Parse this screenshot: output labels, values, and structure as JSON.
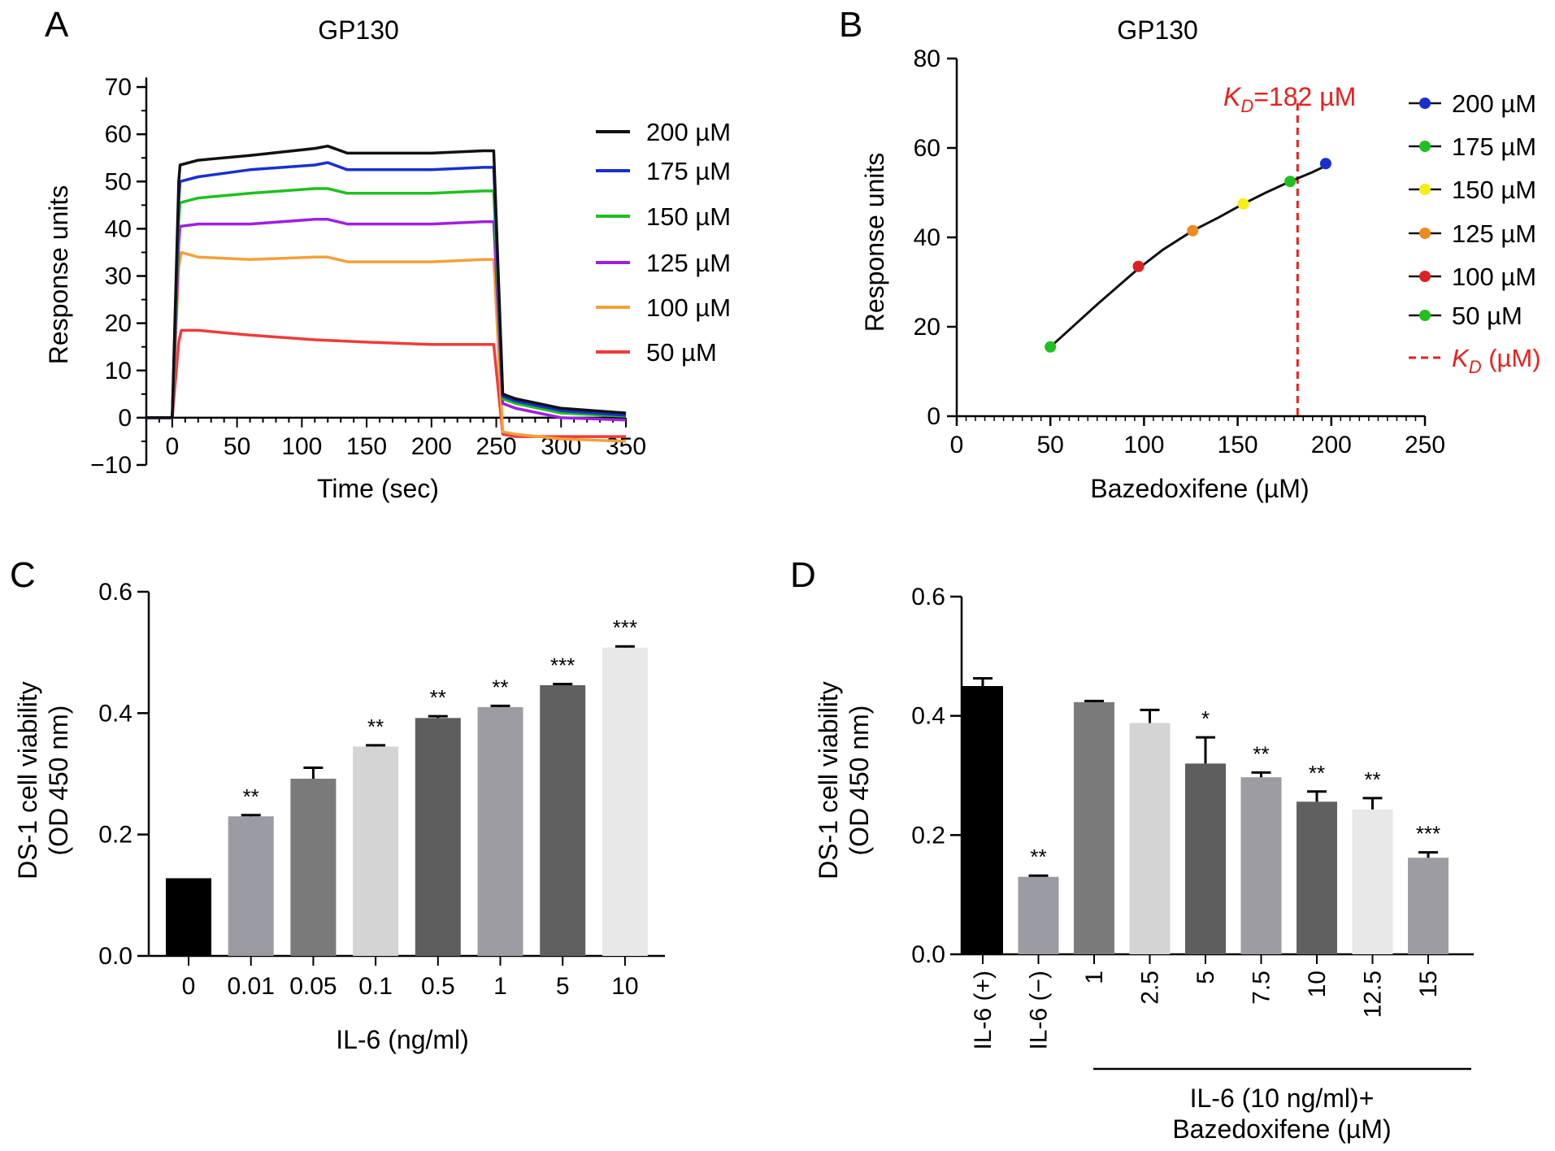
{
  "colors": {
    "black": "#111111",
    "blue": "#1a2fd0",
    "green": "#1fc01f",
    "purple": "#a01fe0",
    "orange": "#f5a03a",
    "red": "#ef3b3b",
    "yellow": "#f4ee12",
    "dot_orange": "#f08a1c",
    "dot_red": "#e02020",
    "kd_red": "#e8201c"
  },
  "chart_data": [
    {
      "panel": "A",
      "type": "line",
      "title": "GP130",
      "xlabel": "Time (sec)",
      "ylabel": "Response units",
      "xlim": [
        -20,
        350
      ],
      "ylim": [
        -10,
        75
      ],
      "xticks": [
        0,
        50,
        100,
        150,
        200,
        250,
        300,
        350
      ],
      "xtick_labels": [
        "0",
        "50",
        "100",
        "150",
        "200",
        "250",
        "300",
        "350"
      ],
      "yticks": [
        -10,
        0,
        10,
        20,
        30,
        40,
        50,
        60,
        70
      ],
      "ytick_labels": [
        "−10",
        "0",
        "10",
        "20",
        "30",
        "40",
        "50",
        "60",
        "70"
      ],
      "legend": "top-right",
      "series": [
        {
          "name": "200 µM",
          "color": "#111111",
          "points": [
            [
              -20,
              0
            ],
            [
              0,
              0
            ],
            [
              5,
              50
            ],
            [
              6,
              53.5
            ],
            [
              20,
              54.5
            ],
            [
              60,
              55.5
            ],
            [
              110,
              57
            ],
            [
              120,
              57.5
            ],
            [
              135,
              56
            ],
            [
              200,
              56
            ],
            [
              240,
              56.5
            ],
            [
              248,
              56.5
            ],
            [
              255,
              5
            ],
            [
              265,
              4
            ],
            [
              300,
              2
            ],
            [
              350,
              1
            ]
          ]
        },
        {
          "name": "175 µM",
          "color": "#1a2fd0",
          "points": [
            [
              -20,
              0
            ],
            [
              0,
              0
            ],
            [
              5,
              46
            ],
            [
              6,
              50
            ],
            [
              20,
              51
            ],
            [
              60,
              52.5
            ],
            [
              110,
              53.5
            ],
            [
              120,
              54
            ],
            [
              135,
              52.5
            ],
            [
              200,
              52.5
            ],
            [
              240,
              53
            ],
            [
              248,
              53
            ],
            [
              255,
              4.5
            ],
            [
              265,
              3.5
            ],
            [
              300,
              1.5
            ],
            [
              350,
              0.5
            ]
          ]
        },
        {
          "name": "150 µM",
          "color": "#1fc01f",
          "points": [
            [
              -20,
              0
            ],
            [
              0,
              0
            ],
            [
              5,
              42
            ],
            [
              6,
              45.5
            ],
            [
              20,
              46.5
            ],
            [
              60,
              47.5
            ],
            [
              110,
              48.5
            ],
            [
              120,
              48.5
            ],
            [
              135,
              47.5
            ],
            [
              200,
              47.5
            ],
            [
              240,
              48
            ],
            [
              248,
              48
            ],
            [
              255,
              4
            ],
            [
              265,
              3
            ],
            [
              300,
              1
            ],
            [
              350,
              0.3
            ]
          ]
        },
        {
          "name": "125 µM",
          "color": "#a01fe0",
          "points": [
            [
              -20,
              0
            ],
            [
              0,
              0
            ],
            [
              5,
              37
            ],
            [
              6,
              40.5
            ],
            [
              20,
              41
            ],
            [
              60,
              41
            ],
            [
              110,
              42
            ],
            [
              120,
              42
            ],
            [
              135,
              41
            ],
            [
              200,
              41
            ],
            [
              240,
              41.5
            ],
            [
              248,
              41.5
            ],
            [
              255,
              3
            ],
            [
              265,
              2
            ],
            [
              300,
              0
            ],
            [
              350,
              -0.5
            ]
          ]
        },
        {
          "name": "100 µM",
          "color": "#f5a03a",
          "points": [
            [
              -20,
              0
            ],
            [
              0,
              0
            ],
            [
              5,
              32
            ],
            [
              7,
              35
            ],
            [
              20,
              34
            ],
            [
              60,
              33.5
            ],
            [
              110,
              34
            ],
            [
              120,
              34
            ],
            [
              135,
              33
            ],
            [
              200,
              33
            ],
            [
              240,
              33.5
            ],
            [
              248,
              33.5
            ],
            [
              255,
              -3
            ],
            [
              265,
              -3.5
            ],
            [
              300,
              -4.5
            ],
            [
              350,
              -5
            ]
          ]
        },
        {
          "name": "50 µM",
          "color": "#ef3b3b",
          "points": [
            [
              -20,
              0
            ],
            [
              0,
              0
            ],
            [
              5,
              16
            ],
            [
              7,
              18.5
            ],
            [
              20,
              18.5
            ],
            [
              60,
              17.5
            ],
            [
              110,
              16.5
            ],
            [
              150,
              16
            ],
            [
              200,
              15.5
            ],
            [
              240,
              15.5
            ],
            [
              248,
              15.5
            ],
            [
              255,
              -3.5
            ],
            [
              265,
              -4
            ],
            [
              300,
              -4
            ],
            [
              350,
              -4
            ]
          ]
        }
      ]
    },
    {
      "panel": "B",
      "type": "scatter",
      "title": "GP130",
      "xlabel": "Bazedoxifene (µM)",
      "ylabel": "Response units",
      "xlim": [
        0,
        250
      ],
      "ylim": [
        0,
        80
      ],
      "xticks": [
        0,
        50,
        100,
        150,
        200,
        250
      ],
      "yticks": [
        0,
        20,
        40,
        60,
        80
      ],
      "kd_annotation": "=182 µM",
      "kd_symbol": "K",
      "kd_subscript": "D",
      "kd_value": 182,
      "fit_points": [
        [
          50,
          15.5
        ],
        [
          75,
          25
        ],
        [
          97,
          33
        ],
        [
          110,
          37.2
        ],
        [
          126,
          41.5
        ],
        [
          140,
          44.5
        ],
        [
          153,
          47.5
        ],
        [
          165,
          50
        ],
        [
          178,
          52.5
        ],
        [
          190,
          54.6
        ],
        [
          197,
          56
        ]
      ],
      "points": [
        {
          "label": "200 µM",
          "x": 197,
          "y": 56.5,
          "color": "#1a2fd0"
        },
        {
          "label": "175 µM",
          "x": 178,
          "y": 52.5,
          "color": "#1fc01f"
        },
        {
          "label": "150 µM",
          "x": 153,
          "y": 47.5,
          "color": "#f4ee12"
        },
        {
          "label": "125 µM",
          "x": 126,
          "y": 41.5,
          "color": "#f08a1c"
        },
        {
          "label": "100 µM",
          "x": 97,
          "y": 33.5,
          "color": "#e02020"
        },
        {
          "label": "50 µM",
          "x": 50,
          "y": 15.5,
          "color": "#1fc01f"
        }
      ],
      "legend_kd_suffix": " (µM)",
      "legend": "right"
    },
    {
      "panel": "C",
      "type": "bar",
      "xlabel": "IL-6 (ng/ml)",
      "ylabel": "DS-1 cell viability",
      "ylabel2": "(OD 450 nm)",
      "ylim": [
        0,
        0.6
      ],
      "yticks": [
        0,
        0.2,
        0.4,
        0.6
      ],
      "ytick_labels": [
        "0.0",
        "0.2",
        "0.4",
        "0.6"
      ],
      "categories": [
        "0",
        "0.01",
        "0.05",
        "0.1",
        "0.5",
        "1",
        "5",
        "10"
      ],
      "values": [
        0.128,
        0.23,
        0.292,
        0.345,
        0.392,
        0.41,
        0.446,
        0.508
      ],
      "errors": [
        0,
        0.002,
        0.018,
        0.002,
        0.003,
        0.002,
        0.002,
        0.002
      ],
      "significance": [
        "",
        "**",
        "",
        "**",
        "**",
        "**",
        "***",
        "***"
      ],
      "bar_colors": [
        "#000000",
        "#9b9ba3",
        "#7a7a7a",
        "#d4d4d4",
        "#5e5e5e",
        "#9c9ca2",
        "#606060",
        "#e8e8e8"
      ]
    },
    {
      "panel": "D",
      "type": "bar",
      "ylabel": "DS-1 cell viability",
      "ylabel2": "(OD 450 nm)",
      "ylim": [
        0,
        0.6
      ],
      "yticks": [
        0,
        0.2,
        0.4,
        0.6
      ],
      "ytick_labels": [
        "0.0",
        "0.2",
        "0.4",
        "0.6"
      ],
      "categories": [
        "IL-6 (+)",
        "IL-6 (−)",
        "1",
        "2.5",
        "5",
        "7.5",
        "10",
        "12.5",
        "15"
      ],
      "values": [
        0.45,
        0.13,
        0.423,
        0.388,
        0.32,
        0.297,
        0.256,
        0.243,
        0.162
      ],
      "errors": [
        0.013,
        0.002,
        0.002,
        0.022,
        0.044,
        0.008,
        0.017,
        0.019,
        0.009
      ],
      "significance": [
        "",
        "**",
        "",
        "",
        "*",
        "**",
        "**",
        "**",
        "***"
      ],
      "bar_colors": [
        "#000000",
        "#9b9ba3",
        "#7a7a7a",
        "#d4d4d4",
        "#5e5e5e",
        "#9c9ca2",
        "#606060",
        "#e8e8e8",
        "#9c9ca2"
      ],
      "group_label_line1": "IL-6 (10 ng/ml)+",
      "group_label_line2": "Bazedoxifene (µM)"
    }
  ]
}
